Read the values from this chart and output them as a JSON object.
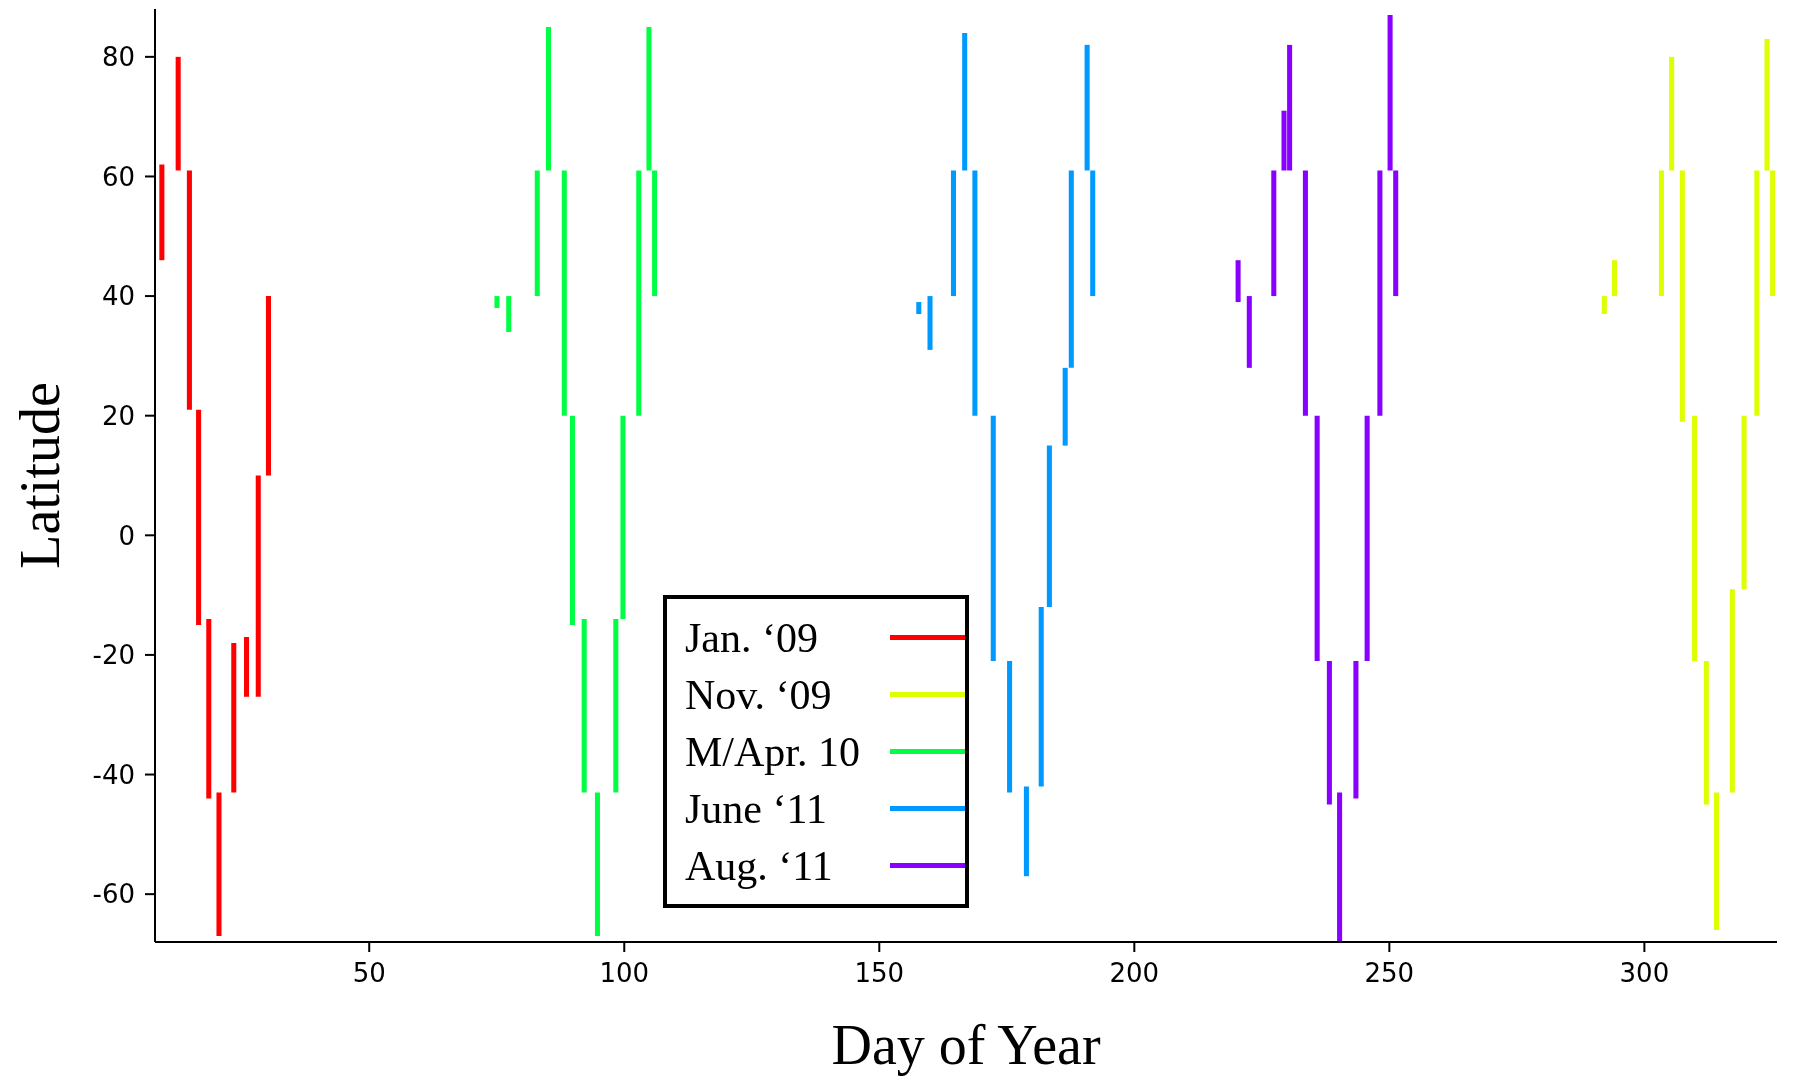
{
  "chart_data": {
    "type": "bar",
    "xlabel": "Day of Year",
    "ylabel": "Latitude",
    "xlim": [
      8,
      326
    ],
    "xticks": [
      50,
      100,
      150,
      200,
      250,
      300
    ],
    "ylim": [
      -68,
      88
    ],
    "yticks": [
      -60,
      -40,
      -20,
      0,
      20,
      40,
      60,
      80
    ],
    "legend": "bottom",
    "grid": false,
    "series": [
      {
        "name": "Jan. ‘09",
        "color": "#ff0000",
        "x": [
          9.4,
          12.6,
          14.8,
          16.6,
          18.6,
          20.6,
          23.5,
          26,
          28.3,
          30.3
        ],
        "base": [
          46,
          61,
          21,
          -15,
          -44,
          -67,
          -43,
          -27,
          -27,
          10
        ],
        "values": [
          16,
          19,
          40,
          36,
          30,
          24,
          25,
          10,
          37,
          30
        ]
      },
      {
        "name": "Nov. ‘09",
        "color": "#ddff00",
        "x": [
          292.2,
          294.2,
          303.4,
          305.4,
          307.5,
          309.9,
          312.2,
          314.2,
          317.3,
          319.6,
          322.1,
          324.1,
          325.2
        ],
        "base": [
          37,
          40,
          40,
          61,
          19,
          -21,
          -45,
          -66,
          -43,
          -9,
          20,
          61,
          40
        ],
        "values": [
          3,
          6,
          21,
          19,
          42,
          41,
          24,
          23,
          34,
          29,
          41,
          22,
          21
        ]
      },
      {
        "name": "M/Apr. 10",
        "color": "#00ff44",
        "x": [
          75.1,
          77.4,
          83,
          85.2,
          88.3,
          89.9,
          92.2,
          94.8,
          98.4,
          99.8,
          102.9,
          104.9,
          106
        ],
        "base": [
          38,
          34,
          40,
          61,
          20,
          -15,
          -43,
          -67,
          -43,
          -14,
          20,
          61,
          40
        ],
        "values": [
          2,
          6,
          21,
          24,
          41,
          35,
          29,
          24,
          29,
          34,
          41,
          24,
          21
        ]
      },
      {
        "name": "June ‘11",
        "color": "#0099ff",
        "x": [
          157.8,
          160,
          164.6,
          166.8,
          168.8,
          172.4,
          175.6,
          178.9,
          181.8,
          183.4,
          186.5,
          187.7,
          190.8,
          191.9
        ],
        "base": [
          37,
          31,
          40,
          61,
          20,
          -21,
          -43,
          -57,
          -42,
          -12,
          15,
          28,
          61,
          40
        ],
        "values": [
          2,
          9,
          21,
          23,
          41,
          41,
          22,
          15,
          30,
          27,
          13,
          33,
          21,
          21
        ]
      },
      {
        "name": "Aug. ‘11",
        "color": "#8800ff",
        "x": [
          220.4,
          222.6,
          227.4,
          229.4,
          230.5,
          233.6,
          235.9,
          238.3,
          240.3,
          243.5,
          245.7,
          248.2,
          250.2,
          251.3
        ],
        "base": [
          39,
          28,
          40,
          61,
          61,
          20,
          -21,
          -45,
          -68,
          -44,
          -21,
          20,
          61,
          40
        ],
        "values": [
          7,
          12,
          21,
          10,
          21,
          41,
          41,
          24,
          25,
          23,
          41,
          41,
          26,
          21
        ]
      }
    ]
  }
}
